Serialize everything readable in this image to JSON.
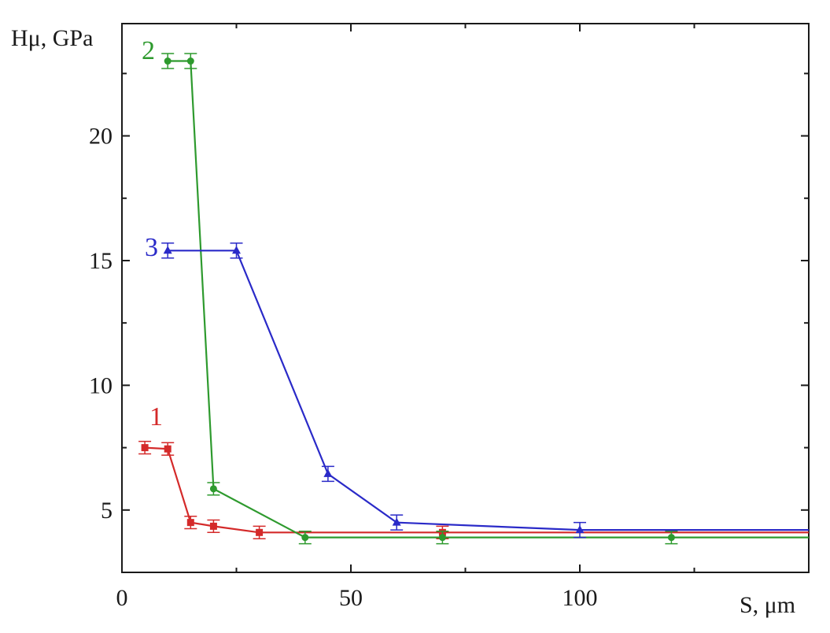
{
  "chart_data": {
    "type": "line",
    "ylabel": "Hμ, GPa",
    "xlabel": "S, μm",
    "xlim": [
      0,
      150
    ],
    "ylim": [
      2.5,
      24.5
    ],
    "x_ticks": [
      0,
      50,
      100
    ],
    "x_tick_labels": [
      "0",
      "50",
      "100"
    ],
    "y_ticks": [
      5,
      10,
      15,
      20
    ],
    "y_tick_labels": [
      "5",
      "10",
      "15",
      "20"
    ],
    "grid": false,
    "error_bars": true,
    "series": [
      {
        "name": "1",
        "color": "#d42a2a",
        "marker": "square",
        "x": [
          5,
          10,
          15,
          20,
          30,
          40,
          70,
          150
        ],
        "y": [
          7.5,
          7.45,
          4.5,
          4.35,
          4.1,
          4.1,
          4.1,
          4.1
        ],
        "error": [
          0.25,
          0.25,
          0.25,
          0.25,
          0.25,
          0.25,
          0.25,
          0
        ],
        "markers_shown": [
          true,
          true,
          true,
          true,
          true,
          false,
          true,
          false
        ]
      },
      {
        "name": "2",
        "color": "#2e9a2e",
        "marker": "circle",
        "x": [
          10,
          15,
          20,
          40,
          70,
          120,
          150
        ],
        "y": [
          23.0,
          23.0,
          5.85,
          3.9,
          3.9,
          3.9,
          3.9
        ],
        "error": [
          0.3,
          0.3,
          0.25,
          0.25,
          0.25,
          0.25,
          0
        ],
        "markers_shown": [
          true,
          true,
          true,
          true,
          true,
          true,
          false
        ]
      },
      {
        "name": "3",
        "color": "#2a2ac8",
        "marker": "triangle",
        "x": [
          10,
          25,
          45,
          60,
          100,
          150
        ],
        "y": [
          15.4,
          15.4,
          6.45,
          4.5,
          4.2,
          4.2
        ],
        "error": [
          0.3,
          0.3,
          0.3,
          0.3,
          0.3,
          0
        ],
        "markers_shown": [
          true,
          true,
          true,
          true,
          true,
          false
        ]
      }
    ]
  }
}
